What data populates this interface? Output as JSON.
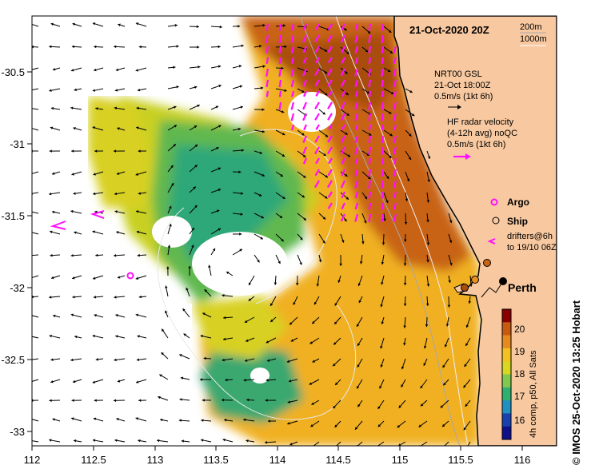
{
  "map": {
    "date_label": "21-Oct-2020 20Z",
    "isobath_labels": [
      "200m",
      "1000m"
    ],
    "gsl_label": [
      "NRT00 GSL",
      "21-Oct 18:00Z",
      "0.5m/s (1kt 6h)"
    ],
    "hf_label": [
      "HF radar velocity",
      "(4-12h avg) noQC",
      "0.5m/s (1kt 6h)"
    ],
    "legend": {
      "argo": "Argo",
      "ship": "Ship",
      "drifters": [
        "drifters@6h",
        "to 19/10 06Z"
      ]
    },
    "city": "Perth",
    "colorbar": {
      "ticks": [
        "20",
        "19",
        "18",
        "17",
        "16"
      ],
      "label": "4h comp, p50, All Sats",
      "colors": [
        "#8a0000",
        "#c85a10",
        "#e68a20",
        "#f2c020",
        "#d8d820",
        "#80c850",
        "#30b070",
        "#2090c0",
        "#1a40b0",
        "#10108a"
      ]
    },
    "credit": "© IMOS 25-Oct-2020 13:25 Hobart",
    "x_ticks": [
      "112",
      "112.5",
      "113",
      "113.5",
      "114",
      "114.5",
      "115",
      "115.5",
      "116"
    ],
    "y_ticks": [
      "-30.5",
      "-31",
      "-31.5",
      "-32",
      "-32.5",
      "-33"
    ],
    "colors": {
      "land": "#f8c9a0",
      "warm": "#c86414",
      "cool": "#30a070",
      "hf_arrow": "#ff10ff"
    }
  }
}
